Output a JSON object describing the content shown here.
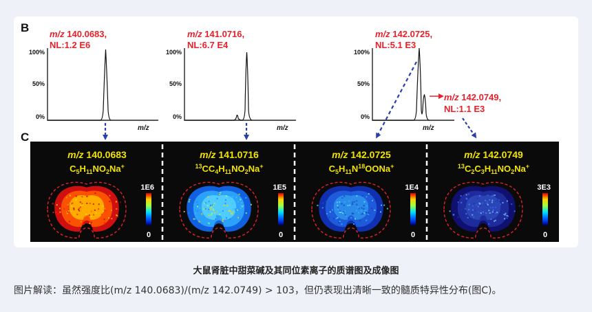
{
  "figure": {
    "panel_b_label": "B",
    "panel_c_label": "C",
    "spectra": [
      {
        "mz_prefix": "m/z",
        "mz_value": "140.0683,",
        "nl": "NL:1.2 E6",
        "peak_mz": 140.0683,
        "y_ticks": [
          "100%",
          "50%",
          "0%"
        ],
        "x_label": "m/z"
      },
      {
        "mz_prefix": "m/z",
        "mz_value": "141.0716,",
        "nl": "NL:6.7 E4",
        "peak_mz": 141.0716,
        "y_ticks": [
          "100%",
          "50%",
          "0%"
        ],
        "x_label": "m/z"
      },
      {
        "mz_prefix": "m/z",
        "mz_value": "142.0725,",
        "nl": "NL:5.1 E3",
        "peak_mz": 142.0725,
        "y_ticks": [
          "100%",
          "50%",
          "0%"
        ],
        "x_label": "m/z",
        "second_peak": {
          "mz_prefix": "m/z",
          "mz_value": "142.0749,",
          "nl": "NL:1.1 E3"
        }
      }
    ],
    "images": [
      {
        "mz_prefix": "m/z",
        "mz_value": "140.0683",
        "scale_max": "1E6",
        "scale_min": "0",
        "formula": [
          {
            "t": "C"
          },
          {
            "t": "5",
            "s": "sub"
          },
          {
            "t": "H"
          },
          {
            "t": "11",
            "s": "sub"
          },
          {
            "t": "NO"
          },
          {
            "t": "2",
            "s": "sub"
          },
          {
            "t": "Na"
          },
          {
            "t": "+",
            "s": "sup"
          }
        ]
      },
      {
        "mz_prefix": "m/z",
        "mz_value": "141.0716",
        "scale_max": "1E5",
        "scale_min": "0",
        "formula": [
          {
            "t": "13",
            "s": "sup"
          },
          {
            "t": "CC"
          },
          {
            "t": "4",
            "s": "sub"
          },
          {
            "t": "H"
          },
          {
            "t": "11",
            "s": "sub"
          },
          {
            "t": "NO"
          },
          {
            "t": "2",
            "s": "sub"
          },
          {
            "t": "Na"
          },
          {
            "t": "+",
            "s": "sup"
          }
        ]
      },
      {
        "mz_prefix": "m/z",
        "mz_value": "142.0725",
        "scale_max": "1E4",
        "scale_min": "0",
        "formula": [
          {
            "t": "C"
          },
          {
            "t": "5",
            "s": "sub"
          },
          {
            "t": "H"
          },
          {
            "t": "11",
            "s": "sub"
          },
          {
            "t": "N"
          },
          {
            "t": "18",
            "s": "sup"
          },
          {
            "t": "OONa"
          },
          {
            "t": "+",
            "s": "sup"
          }
        ]
      },
      {
        "mz_prefix": "m/z",
        "mz_value": "142.0749",
        "scale_max": "3E3",
        "scale_min": "0",
        "formula": [
          {
            "t": "13",
            "s": "sup"
          },
          {
            "t": "C"
          },
          {
            "t": "2",
            "s": "sub"
          },
          {
            "t": "C"
          },
          {
            "t": "3",
            "s": "sub"
          },
          {
            "t": "H"
          },
          {
            "t": "11",
            "s": "sub"
          },
          {
            "t": "NO"
          },
          {
            "t": "2",
            "s": "sub"
          },
          {
            "t": "Na"
          },
          {
            "t": "+",
            "s": "sup"
          }
        ]
      }
    ],
    "colors": {
      "annotation": "#e8202a",
      "title": "#f2e400",
      "arrow": "#2b3fa8",
      "panel_bg": "#0a0a0a"
    }
  },
  "caption": "大鼠肾脏中甜菜碱及其同位素离子的质谱图及成像图",
  "note": "图片解读：虽然强度比(m/z 140.0683)/(m/z 142.0749) > 103，但仍表现出清晰一致的髓质特异性分布(图C)。"
}
